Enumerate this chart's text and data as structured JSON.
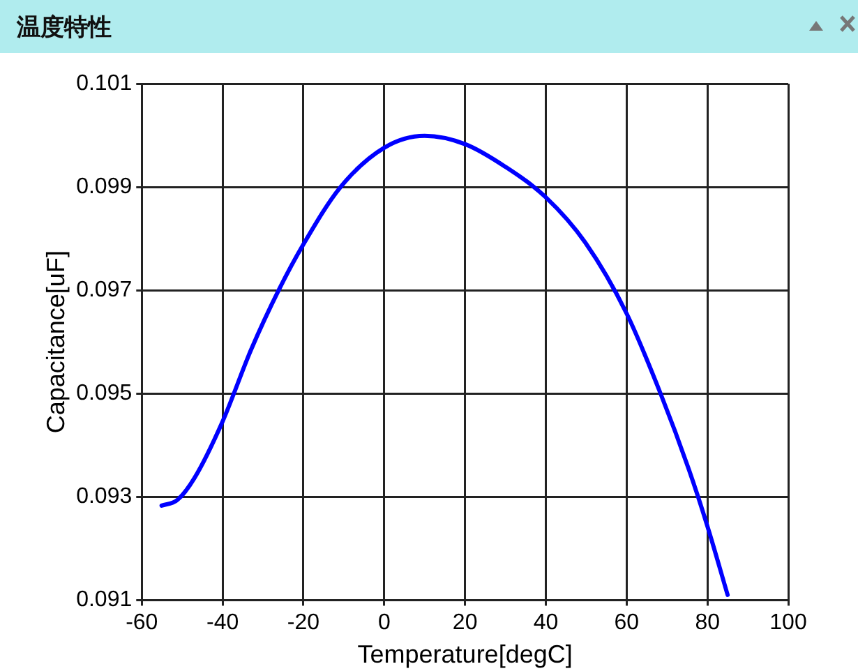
{
  "chart_data": {
    "type": "line",
    "title": "温度特性",
    "xlabel": "Temperature[degC]",
    "ylabel": "Capacitance[uF]",
    "series": [
      {
        "color": "#0000ff",
        "x": [
          -55.1,
          -51.2,
          -47,
          -40,
          -33,
          -26,
          -20,
          -10.9,
          0,
          10,
          20,
          30,
          40,
          49.8,
          60,
          68.4,
          75.4,
          80,
          85
        ],
        "values": [
          0.09283,
          0.09294,
          0.09336,
          0.09446,
          0.09584,
          0.09702,
          0.09789,
          0.09899,
          0.09976,
          0.09999,
          0.09983,
          0.09939,
          0.0988,
          0.09792,
          0.09655,
          0.095,
          0.09353,
          0.09243,
          0.0911
        ]
      }
    ],
    "xlim": [
      -60,
      100
    ],
    "xticks": [
      -60,
      -40,
      -20,
      0,
      20,
      40,
      60,
      80,
      100
    ],
    "ylim": [
      0.091,
      0.101
    ],
    "yticks": [
      0.091,
      0.093,
      0.095,
      0.097,
      0.099,
      0.101
    ],
    "grid": true,
    "legend": false,
    "marker": "none",
    "line_style": "solid"
  }
}
